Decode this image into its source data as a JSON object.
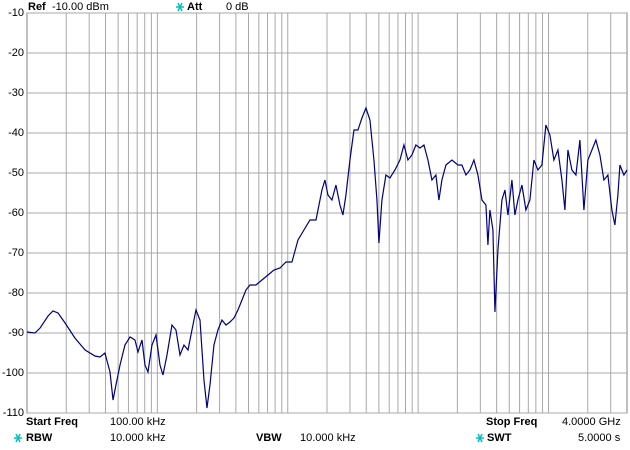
{
  "chart_data": {
    "type": "line",
    "xscale": "log",
    "grid": true,
    "color": "#000080",
    "header": {
      "ref_label": "Ref",
      "ref_value": "-10.00 dBm",
      "att_label": "Att",
      "att_value": "0 dB"
    },
    "footer": {
      "start_label": "Start Freq",
      "start_value": "100.00 kHz",
      "stop_label": "Stop Freq",
      "stop_value": "4.0000 GHz",
      "rbw_label": "RBW",
      "rbw_value": "10.000 kHz",
      "vbw_label": "VBW",
      "vbw_value": "10.000 kHz",
      "swt_label": "SWT",
      "swt_value": "5.0000 s"
    },
    "xlim": [
      100000,
      4000000000
    ],
    "ylim": [
      -110,
      -10
    ],
    "yticks": [
      -10,
      -20,
      -30,
      -40,
      -50,
      -60,
      -70,
      -80,
      -90,
      -100,
      -110
    ],
    "x": [
      100000,
      115000,
      126000,
      145000,
      158000,
      173000,
      196000,
      233000,
      279000,
      332000,
      363000,
      396000,
      433000,
      457000,
      481000,
      517000,
      564000,
      617000,
      673000,
      710000,
      762000,
      803000,
      847000,
      909000,
      976000,
      1047000,
      1104000,
      1185000,
      1294000,
      1389000,
      1491000,
      1600000,
      1717000,
      1842000,
      1977000,
      2122000,
      2277000,
      2401000,
      2532000,
      2716000,
      2915000,
      3129000,
      3357000,
      3603000,
      3867000,
      4150000,
      4455000,
      4779000,
      5130000,
      5703000,
      6341000,
      7051000,
      7840000,
      8716000,
      9690000,
      10770000,
      11980000,
      13310000,
      14800000,
      16460000,
      18300000,
      19290000,
      20340000,
      21830000,
      23420000,
      25140000,
      26500000,
      27940000,
      29990000,
      32190000,
      34540000,
      37070000,
      39790000,
      42700000,
      45810000,
      48310000,
      50050000,
      52770000,
      56620000,
      60780000,
      66370000,
      72510000,
      77800000,
      83520000,
      89650000,
      96160000,
      103200000,
      110800000,
      118900000,
      127600000,
      136900000,
      144400000,
      152200000,
      163400000,
      181600000,
      202000000,
      216700000,
      232600000,
      249700000,
      267900000,
      287500000,
      308600000,
      331100000,
      343000000,
      355300000,
      374700000,
      388200000,
      409300000,
      439200000,
      463100000,
      488400000,
      524100000,
      552500000,
      582600000,
      625200000,
      671000000,
      720100000,
      772700000,
      829300000,
      890000000,
      955000000,
      1025000000,
      1100000000,
      1181000000,
      1267000000,
      1336000000,
      1409000000,
      1512000000,
      1623000000,
      1741000000,
      1869000000,
      2005000000,
      2152000000,
      2309000000,
      2479000000,
      2660000000,
      2854000000,
      3063000000,
      3230000000,
      3406000000,
      3528000000,
      3786000000,
      4000000000
    ],
    "values": [
      -89.75,
      -90,
      -88.75,
      -85.75,
      -84.5,
      -85,
      -87.5,
      -91.25,
      -94.25,
      -95.75,
      -96,
      -95,
      -99.75,
      -106.75,
      -103,
      -98,
      -93,
      -91,
      -91.75,
      -94.75,
      -91.75,
      -98,
      -99.75,
      -93,
      -90.5,
      -98,
      -100.5,
      -95.5,
      -88,
      -89.25,
      -95.5,
      -93,
      -94.25,
      -89.25,
      -84.25,
      -86.75,
      -101.75,
      -108.75,
      -103,
      -93,
      -89.25,
      -86.75,
      -88,
      -87.25,
      -86.25,
      -84.25,
      -81.75,
      -79.25,
      -78,
      -78,
      -76.75,
      -75.5,
      -74.25,
      -73.75,
      -72.25,
      -72.25,
      -66.75,
      -64.25,
      -61.75,
      -61.75,
      -54.25,
      -51.75,
      -55.5,
      -56.75,
      -53,
      -58,
      -60.5,
      -55.5,
      -46.75,
      -39.25,
      -39.25,
      -36.25,
      -33.75,
      -36.75,
      -46.75,
      -56.75,
      -67.5,
      -56.75,
      -50.5,
      -51.25,
      -49.25,
      -46.75,
      -43,
      -46.75,
      -45.5,
      -43,
      -43.75,
      -43,
      -46.75,
      -51.75,
      -50.5,
      -56.75,
      -51.75,
      -48,
      -46.75,
      -48,
      -48,
      -50.5,
      -49.25,
      -46.75,
      -50.5,
      -56.75,
      -58,
      -68,
      -59.25,
      -64.25,
      -84.75,
      -69.25,
      -56.75,
      -54.25,
      -60.5,
      -51.75,
      -60.5,
      -56.75,
      -53,
      -59.25,
      -56.75,
      -46.75,
      -49.25,
      -48,
      -38,
      -40.5,
      -46.75,
      -44.25,
      -51.75,
      -59.25,
      -44.25,
      -49.25,
      -50.5,
      -41.75,
      -59.25,
      -46.75,
      -44.25,
      -41.75,
      -45.5,
      -51.75,
      -50.5,
      -59.25,
      -63,
      -55.5,
      -48,
      -50.5,
      -49.25
    ]
  }
}
